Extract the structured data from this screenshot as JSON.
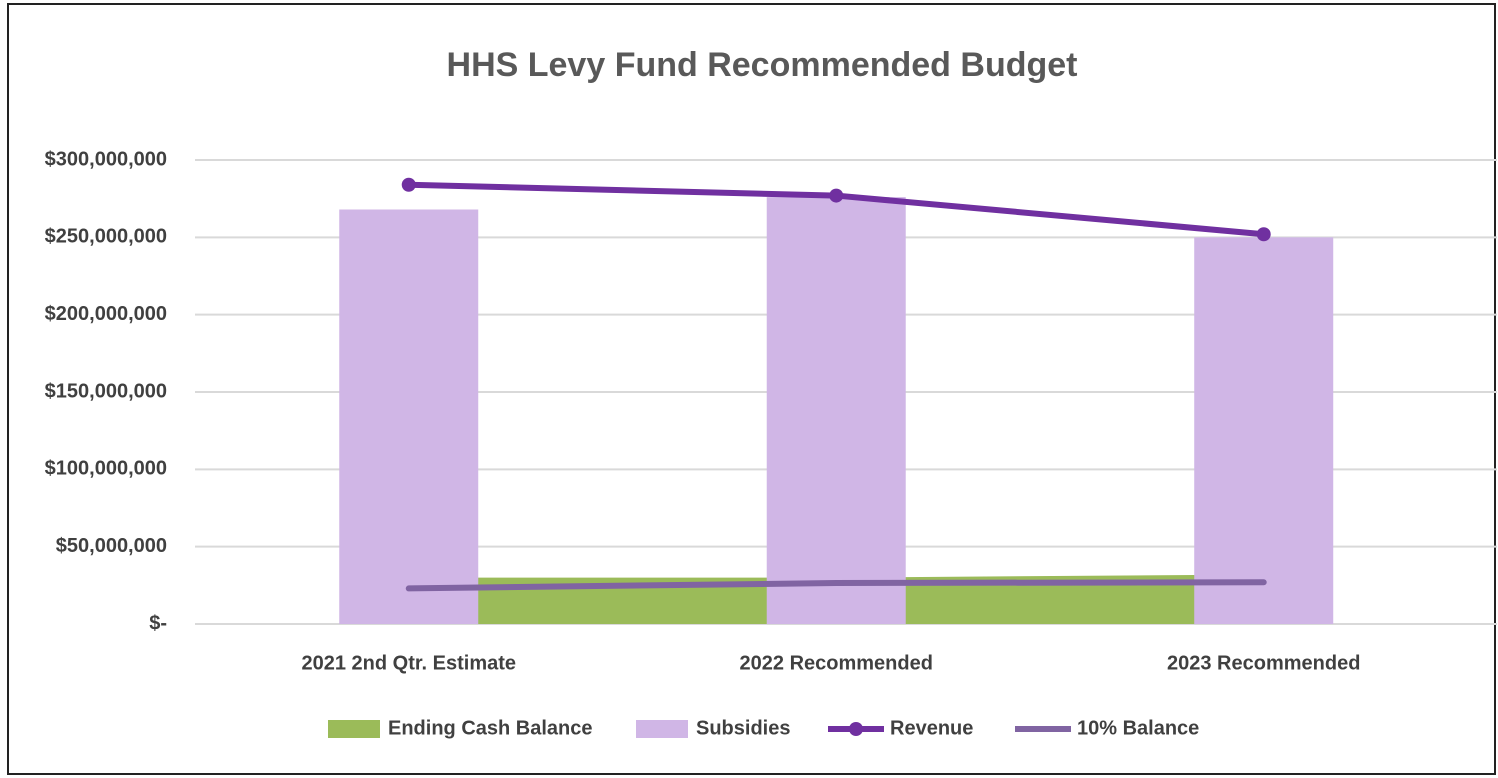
{
  "chart_data": {
    "type": "combo",
    "title": "HHS Levy Fund Recommended Budget",
    "categories": [
      "2021 2nd Qtr. Estimate",
      "2022 Recommended",
      "2023 Recommended"
    ],
    "series": [
      {
        "name": "Ending Cash Balance",
        "type": "area",
        "color": "#9bbb59",
        "values": [
          30000000,
          30000000,
          32000000
        ]
      },
      {
        "name": "Subsidies",
        "type": "bar",
        "color": "#d0b6e6",
        "values": [
          268000000,
          276000000,
          250000000
        ]
      },
      {
        "name": "Revenue",
        "type": "line",
        "marker": true,
        "color": "#7030a0",
        "values": [
          284000000,
          277000000,
          252000000
        ]
      },
      {
        "name": "10% Balance",
        "type": "line",
        "marker": false,
        "color": "#8064a2",
        "values": [
          23000000,
          26500000,
          27000000
        ]
      }
    ],
    "ylim": [
      0,
      300000000
    ],
    "yticks": [
      {
        "value": 0,
        "label": "$-"
      },
      {
        "value": 50000000,
        "label": "$50,000,000"
      },
      {
        "value": 100000000,
        "label": "$100,000,000"
      },
      {
        "value": 150000000,
        "label": "$150,000,000"
      },
      {
        "value": 200000000,
        "label": "$200,000,000"
      },
      {
        "value": 250000000,
        "label": "$250,000,000"
      },
      {
        "value": 300000000,
        "label": "$300,000,000"
      }
    ],
    "grid": true,
    "legend": "bottom"
  }
}
